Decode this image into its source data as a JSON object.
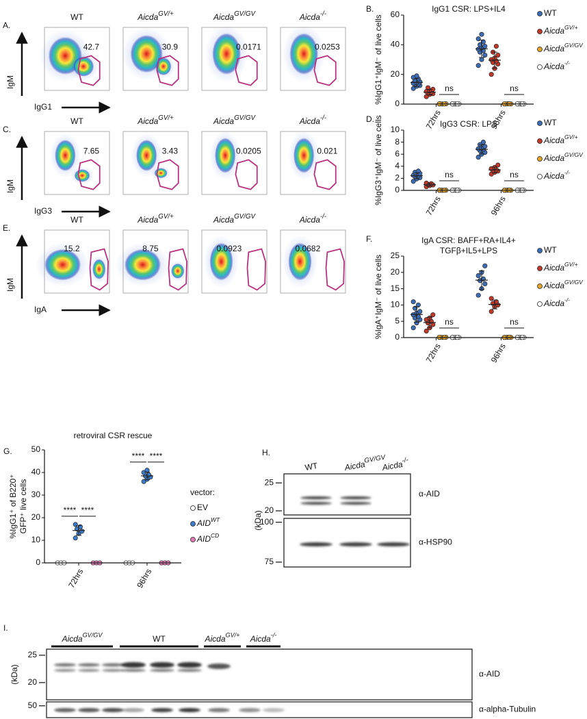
{
  "flow_panels": [
    {
      "letter": "A.",
      "y_axis": "IgM",
      "x_axis": "IgG1",
      "titles": [
        {
          "base": "WT"
        },
        {
          "base": "Aicda",
          "sup": "GV/+"
        },
        {
          "base": "Aicda",
          "sup": "GV/GV"
        },
        {
          "base": "Aicda",
          "sup": "-/-"
        }
      ],
      "gate_values": [
        42.7,
        30.9,
        0.0171,
        0.0253
      ]
    },
    {
      "letter": "C.",
      "y_axis": "IgM",
      "x_axis": "IgG3",
      "titles": [
        {
          "base": "WT"
        },
        {
          "base": "Aicda",
          "sup": "GV/+"
        },
        {
          "base": "Aicda",
          "sup": "GV/GV"
        },
        {
          "base": "Aicda",
          "sup": "-/-"
        }
      ],
      "gate_values": [
        7.65,
        3.43,
        0.0205,
        0.021
      ]
    },
    {
      "letter": "E.",
      "y_axis": "IgM",
      "x_axis": "IgA",
      "titles": [
        {
          "base": "WT"
        },
        {
          "base": "Aicda",
          "sup": "GV/+"
        },
        {
          "base": "Aicda",
          "sup": "GV/GV"
        },
        {
          "base": "Aicda",
          "sup": "-/-"
        }
      ],
      "gate_values": [
        15.2,
        8.75,
        0.0923,
        0.0682
      ]
    }
  ],
  "chart_data": [
    {
      "type": "dot",
      "letter": "B.",
      "title": [
        "IgG1 CSR: LPS+IL4"
      ],
      "y_label": [
        "%IgG1⁺IgM⁻ of live cells"
      ],
      "categories": [
        "72hrs",
        "96hrs"
      ],
      "ylim": [
        0,
        60
      ],
      "yticks": [
        0,
        20,
        40,
        60
      ],
      "series": [
        {
          "name": {
            "base": "WT"
          },
          "color": "#3d6db5",
          "values": [
            [
              10.5,
              12,
              12.5,
              13,
              13.5,
              14,
              14.5,
              15,
              16,
              17,
              18,
              19
            ],
            [
              26,
              30,
              33,
              35,
              36,
              37,
              38,
              39,
              40,
              42,
              44,
              47
            ]
          ]
        },
        {
          "name": {
            "base": "Aicda",
            "sup": "GV/+"
          },
          "color": "#c0392b",
          "values": [
            [
              5,
              6.5,
              7,
              7.5,
              8,
              8.5,
              9,
              10,
              11
            ],
            [
              20,
              24,
              27,
              28,
              29,
              30,
              31,
              33,
              35,
              39
            ]
          ]
        },
        {
          "name": {
            "base": "Aicda",
            "sup": "GV/GV"
          },
          "color": "#e3a42c",
          "values": [
            [
              0.1,
              0.1,
              0.2,
              0.1,
              0.1,
              0.2
            ],
            [
              0.1,
              0.2,
              0.1,
              0.1,
              0.2,
              0.1
            ]
          ]
        },
        {
          "name": {
            "base": "Aicda",
            "sup": "-/-"
          },
          "color": "#ffffff",
          "values": [
            [
              0.1,
              0.1,
              0.1,
              0.1,
              0.1,
              0.1
            ],
            [
              0.1,
              0.1,
              0.1,
              0.1,
              0.1,
              0.1
            ]
          ]
        }
      ],
      "annotations": [
        "ns",
        "ns"
      ]
    },
    {
      "type": "dot",
      "letter": "D.",
      "title": [
        "IgG3 CSR: LPS"
      ],
      "y_label": [
        "%IgG3⁺IgM⁻ of live cells"
      ],
      "categories": [
        "72hrs",
        "96hrs"
      ],
      "ylim": [
        0,
        10
      ],
      "yticks": [
        0,
        2,
        4,
        6,
        8,
        10
      ],
      "series": [
        {
          "name": {
            "base": "WT"
          },
          "color": "#3d6db5",
          "values": [
            [
              1.5,
              1.9,
              2.1,
              2.3,
              2.4,
              2.5,
              2.6,
              2.8,
              3.0,
              3.2
            ],
            [
              5.5,
              6.0,
              6.3,
              6.6,
              6.8,
              6.9,
              7.0,
              7.3,
              7.6,
              8.0
            ]
          ]
        },
        {
          "name": {
            "base": "Aicda",
            "sup": "GV/+"
          },
          "color": "#c0392b",
          "values": [
            [
              0.6,
              0.8,
              0.9,
              1.0,
              1.1,
              1.2
            ],
            [
              2.7,
              3.0,
              3.2,
              3.3,
              3.4,
              3.6,
              3.8,
              4.2
            ]
          ]
        },
        {
          "name": {
            "base": "Aicda",
            "sup": "GV/GV"
          },
          "color": "#e3a42c",
          "values": [
            [
              0.02,
              0.02,
              0.03,
              0.02,
              0.02,
              0.03
            ],
            [
              0.02,
              0.03,
              0.02,
              0.02,
              0.03,
              0.02
            ]
          ]
        },
        {
          "name": {
            "base": "Aicda",
            "sup": "-/-"
          },
          "color": "#ffffff",
          "values": [
            [
              0.02,
              0.02,
              0.02,
              0.02,
              0.02,
              0.02
            ],
            [
              0.02,
              0.02,
              0.02,
              0.02,
              0.02,
              0.02
            ]
          ]
        }
      ],
      "annotations": [
        "ns",
        "ns"
      ]
    },
    {
      "type": "dot",
      "letter": "F.",
      "title": [
        "IgA CSR: BAFF+RA+IL4+",
        "TGFβ+IL5+LPS"
      ],
      "y_label": [
        "%IgA⁺IgM⁻ of live cells"
      ],
      "categories": [
        "72hrs",
        "96hrs"
      ],
      "ylim": [
        0,
        25
      ],
      "yticks": [
        0,
        5,
        10,
        15,
        20,
        25
      ],
      "series": [
        {
          "name": {
            "base": "WT"
          },
          "color": "#3d6db5",
          "values": [
            [
              3,
              4.5,
              5.5,
              6,
              6.5,
              7,
              7.5,
              8,
              9,
              10,
              11
            ],
            [
              13,
              15,
              16.5,
              17.5,
              18,
              19,
              20,
              22
            ]
          ]
        },
        {
          "name": {
            "base": "Aicda",
            "sup": "GV/+"
          },
          "color": "#c0392b",
          "values": [
            [
              2,
              3,
              4,
              4.5,
              5,
              5.5,
              6,
              7
            ],
            [
              8,
              9.5,
              10,
              10.5,
              11,
              12
            ]
          ]
        },
        {
          "name": {
            "base": "Aicda",
            "sup": "GV/GV"
          },
          "color": "#e3a42c",
          "values": [
            [
              0.05,
              0.05,
              0.1,
              0.05,
              0.05,
              0.1
            ],
            [
              0.05,
              0.1,
              0.05,
              0.05,
              0.1,
              0.05
            ]
          ]
        },
        {
          "name": {
            "base": "Aicda",
            "sup": "-/-"
          },
          "color": "#ffffff",
          "values": [
            [
              0.05,
              0.05,
              0.05,
              0.05,
              0.05,
              0.05
            ],
            [
              0.05,
              0.05,
              0.05,
              0.05,
              0.05,
              0.05
            ]
          ]
        }
      ],
      "annotations": [
        "ns",
        "ns"
      ]
    },
    {
      "type": "dot",
      "letter": "G.",
      "title": [
        "retroviral CSR rescue"
      ],
      "y_label": [
        "%IgG1⁺ of B220⁺",
        "GFP⁺ live cells"
      ],
      "categories": [
        "72hrs",
        "96hrs"
      ],
      "ylim": [
        0,
        50
      ],
      "yticks": [
        0,
        10,
        20,
        30,
        40,
        50
      ],
      "legend_title": "vector:",
      "series": [
        {
          "name": {
            "base": "EV"
          },
          "color": "#ffffff",
          "values": [
            [
              0,
              0,
              0
            ],
            [
              0,
              0,
              0
            ]
          ]
        },
        {
          "name": {
            "base": "AID",
            "sup": "WT"
          },
          "color": "#3d7cc9",
          "values": [
            [
              11,
              13,
              14,
              15,
              16,
              17
            ],
            [
              36,
              37,
              38,
              38.5,
              39,
              40,
              41
            ]
          ]
        },
        {
          "name": {
            "base": "AID",
            "sup": "CD"
          },
          "color": "#e07bb5",
          "values": [
            [
              0,
              0,
              0
            ],
            [
              0,
              0,
              0
            ]
          ]
        }
      ],
      "annotations": [
        "****",
        "****",
        "****",
        "****"
      ]
    }
  ],
  "blots": [
    {
      "letter": "H.",
      "labels": [
        {
          "base": "WT"
        },
        {
          "base": "Aicda",
          "sup": "GV/GV"
        },
        {
          "base": "Aicda",
          "sup": "-/-"
        }
      ],
      "unit": "(kDa)",
      "panels": [
        {
          "antibody": "α-AID",
          "markers": [
            25,
            20
          ]
        },
        {
          "antibody": "α-HSP90",
          "markers": [
            100,
            75
          ]
        }
      ]
    },
    {
      "letter": "I.",
      "labels": [
        {
          "base": "Aicda",
          "sup": "GV/GV"
        },
        {
          "base": "WT"
        },
        {
          "base": "Aicda",
          "sup": "GV/+"
        },
        {
          "base": "Aicda",
          "sup": "-/-"
        }
      ],
      "unit": "(kDa)",
      "panels": [
        {
          "antibody": "α-AID",
          "markers": [
            25,
            20
          ]
        },
        {
          "antibody": "α-alpha-Tubulin",
          "markers": [
            50
          ]
        }
      ]
    }
  ]
}
